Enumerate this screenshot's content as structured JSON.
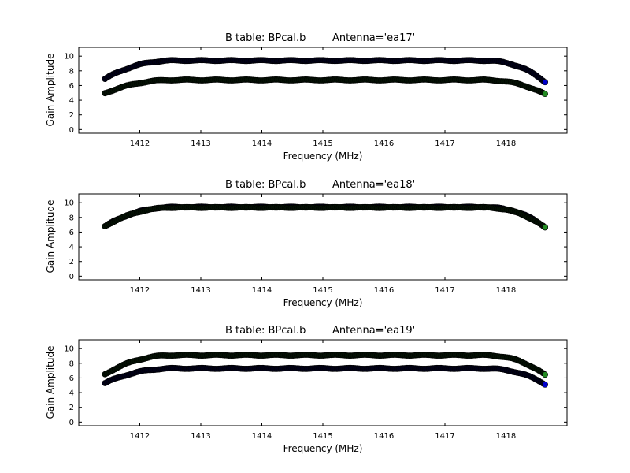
{
  "chart_data": [
    {
      "type": "scatter",
      "title_prefix": "B table: BPcal.b",
      "title_antenna": "Antenna='ea17'",
      "xlabel": "Frequency (MHz)",
      "ylabel": "Gain Amplitude",
      "xlim": [
        1411.0,
        1419.0
      ],
      "ylim": [
        -0.5,
        11.2
      ],
      "xticks": [
        1412,
        1413,
        1414,
        1415,
        1416,
        1417,
        1418
      ],
      "yticks": [
        0,
        2,
        4,
        6,
        8,
        10
      ],
      "xrange": [
        1411.43,
        1418.64
      ],
      "series": [
        {
          "color": "#0000cc",
          "values": {
            "edge": 6.9,
            "plateau": 9.4,
            "end": 6.5
          }
        },
        {
          "color": "#228b22",
          "values": {
            "edge": 4.95,
            "plateau": 6.75,
            "end": 4.8
          }
        }
      ]
    },
    {
      "type": "scatter",
      "title_prefix": "B table: BPcal.b",
      "title_antenna": "Antenna='ea18'",
      "xlabel": "Frequency (MHz)",
      "ylabel": "Gain Amplitude",
      "xlim": [
        1411.0,
        1419.0
      ],
      "ylim": [
        -0.5,
        11.2
      ],
      "xticks": [
        1412,
        1413,
        1414,
        1415,
        1416,
        1417,
        1418
      ],
      "yticks": [
        0,
        2,
        4,
        6,
        8,
        10
      ],
      "xrange": [
        1411.43,
        1418.64
      ],
      "series": [
        {
          "color": "#0000cc",
          "values": {
            "edge": 6.8,
            "plateau": 9.4,
            "end": 6.7
          }
        },
        {
          "color": "#228b22",
          "values": {
            "edge": 6.8,
            "plateau": 9.35,
            "end": 6.6
          }
        }
      ]
    },
    {
      "type": "scatter",
      "title_prefix": "B table: BPcal.b",
      "title_antenna": "Antenna='ea19'",
      "xlabel": "Frequency (MHz)",
      "ylabel": "Gain Amplitude",
      "xlim": [
        1411.0,
        1419.0
      ],
      "ylim": [
        -0.5,
        11.2
      ],
      "xticks": [
        1412,
        1413,
        1414,
        1415,
        1416,
        1417,
        1418
      ],
      "yticks": [
        0,
        2,
        4,
        6,
        8,
        10
      ],
      "xrange": [
        1411.43,
        1418.64
      ],
      "series": [
        {
          "color": "#0000cc",
          "values": {
            "edge": 5.3,
            "plateau": 7.3,
            "end": 5.15
          }
        },
        {
          "color": "#228b22",
          "values": {
            "edge": 6.5,
            "plateau": 9.1,
            "end": 6.4
          }
        }
      ]
    }
  ]
}
